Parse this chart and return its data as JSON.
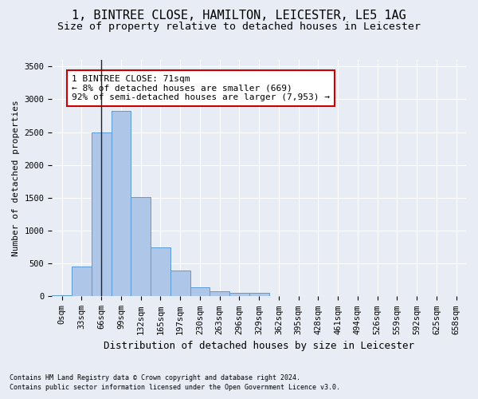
{
  "title": "1, BINTREE CLOSE, HAMILTON, LEICESTER, LE5 1AG",
  "subtitle": "Size of property relative to detached houses in Leicester",
  "xlabel": "Distribution of detached houses by size in Leicester",
  "ylabel": "Number of detached properties",
  "footer_line1": "Contains HM Land Registry data © Crown copyright and database right 2024.",
  "footer_line2": "Contains public sector information licensed under the Open Government Licence v3.0.",
  "bin_labels": [
    "0sqm",
    "33sqm",
    "66sqm",
    "99sqm",
    "132sqm",
    "165sqm",
    "197sqm",
    "230sqm",
    "263sqm",
    "296sqm",
    "329sqm",
    "362sqm",
    "395sqm",
    "428sqm",
    "461sqm",
    "494sqm",
    "526sqm",
    "559sqm",
    "592sqm",
    "625sqm",
    "658sqm"
  ],
  "bar_values": [
    20,
    460,
    2500,
    2820,
    1510,
    745,
    390,
    140,
    75,
    55,
    55,
    0,
    0,
    0,
    0,
    0,
    0,
    0,
    0,
    0,
    0
  ],
  "bar_color": "#aec6e8",
  "bar_edge_color": "#5b9bd5",
  "vline_x": 2,
  "vline_color": "#222222",
  "annotation_text": "1 BINTREE CLOSE: 71sqm\n← 8% of detached houses are smaller (669)\n92% of semi-detached houses are larger (7,953) →",
  "annotation_box_color": "#ffffff",
  "annotation_box_edge_color": "#cc0000",
  "ylim": [
    0,
    3600
  ],
  "yticks": [
    0,
    500,
    1000,
    1500,
    2000,
    2500,
    3000,
    3500
  ],
  "background_color": "#e8edf5",
  "grid_color": "#ffffff",
  "title_fontsize": 11,
  "subtitle_fontsize": 9.5,
  "ylabel_fontsize": 8,
  "xlabel_fontsize": 9,
  "tick_fontsize": 7.5,
  "annotation_fontsize": 8,
  "footer_fontsize": 6
}
